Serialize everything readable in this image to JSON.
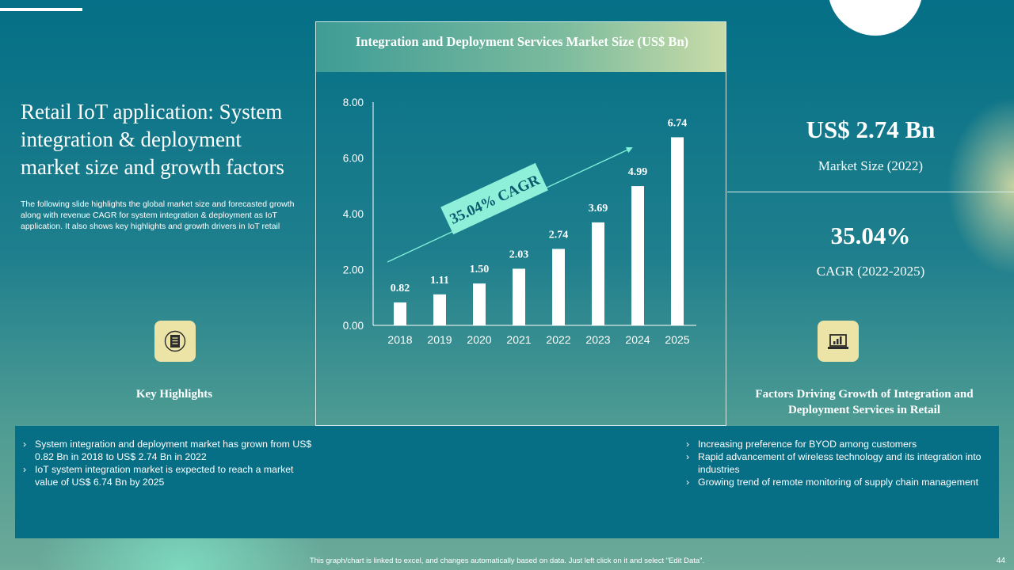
{
  "slide": {
    "title": "Retail IoT application: System integration & deployment market size and growth factors",
    "description": "The following slide highlights the global market size and forecasted growth along with revenue CAGR for system integration & deployment as IoT application. It also shows key highlights and growth drivers in IoT retail",
    "footer_note": "This graph/chart is linked to excel, and changes automatically based on data. Just left click on it and select \"Edit Data\".",
    "page_number": "44"
  },
  "stats": {
    "market_size_value": "US$ 2.74 Bn",
    "market_size_label": "Market Size (2022)",
    "cagr_value": "35.04%",
    "cagr_label": "CAGR (2022-2025)"
  },
  "key_highlights": {
    "heading": "Key Highlights",
    "icon": "document-list-icon",
    "items": [
      "System integration and deployment market has grown from US$ 0.82 Bn in 2018 to US$ 2.74 Bn in 2022",
      "IoT system integration market is expected to reach a market value of US$ 6.74 Bn by 2025"
    ]
  },
  "growth_factors": {
    "heading": "Factors Driving Growth of Integration and Deployment Services in Retail",
    "icon": "laptop-chart-icon",
    "items": [
      "Increasing preference for BYOD among customers",
      "Rapid advancement of wireless technology and its integration into industries",
      "Growing trend of remote monitoring of supply chain management"
    ]
  },
  "chart_data": {
    "type": "bar",
    "title": "Integration and Deployment Services Market Size (US$ Bn)",
    "categories": [
      "2018",
      "2019",
      "2020",
      "2021",
      "2022",
      "2023",
      "2024",
      "2025"
    ],
    "values": [
      0.82,
      1.11,
      1.5,
      2.03,
      2.74,
      3.69,
      4.99,
      6.74
    ],
    "value_labels": [
      "0.82",
      "1.11",
      "1.50",
      "2.03",
      "2.74",
      "3.69",
      "4.99",
      "6.74"
    ],
    "ylim": [
      0,
      8
    ],
    "yticks": [
      "0.00",
      "2.00",
      "4.00",
      "6.00",
      "8.00"
    ],
    "annotation": "35.04% CAGR",
    "grid": false,
    "colors": {
      "bar": "#ffffff",
      "arrow": "#7ff0d8",
      "badge": "#8ef0d8",
      "badge_text": "#0b5b6e"
    }
  },
  "colors": {
    "band": "#066f86",
    "icon_bg": "#ece3a6"
  }
}
